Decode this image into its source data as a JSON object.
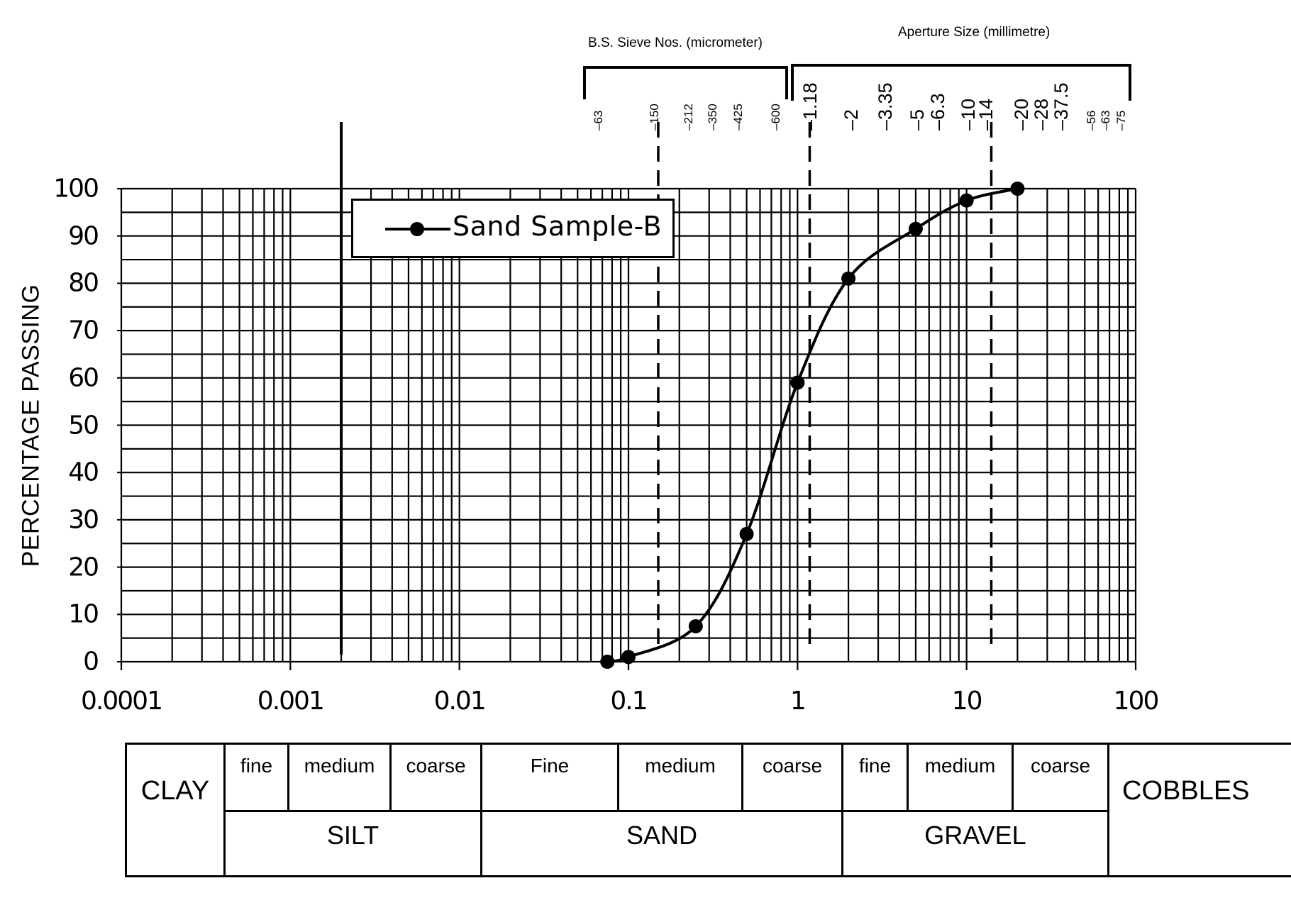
{
  "chart_data": {
    "type": "line",
    "title": "",
    "xlabel": "",
    "ylabel": "PERCENTAGE PASSING",
    "x_scale": "log",
    "xlim": [
      0.0001,
      100
    ],
    "ylim": [
      0,
      100
    ],
    "x_ticks": [
      "0.0001",
      "0.001",
      "0.01",
      "0.1",
      "1",
      "10",
      "100"
    ],
    "y_ticks": [
      "0",
      "10",
      "20",
      "30",
      "40",
      "50",
      "60",
      "70",
      "80",
      "90",
      "100"
    ],
    "grid": true,
    "legend_position": "upper-left",
    "series": [
      {
        "name": "Sand Sample-B",
        "marker": "filled-circle",
        "x": [
          0.075,
          0.1,
          0.25,
          0.5,
          1,
          2,
          5,
          10,
          20
        ],
        "y": [
          0,
          1,
          7.5,
          27,
          59,
          81,
          91.5,
          97.5,
          100
        ]
      }
    ],
    "annotations": {
      "sieve_title": "B.S. Sieve Nos. (micrometer)",
      "aperture_title": "Aperture Size (millimetre)",
      "sieve_ticks_um": [
        "63",
        "150",
        "212",
        "350",
        "425",
        "600"
      ],
      "aperture_ticks_mm": [
        "1.18",
        "2",
        "3.35",
        "5",
        "6.3",
        "10",
        "14",
        "20",
        "28",
        "37.5",
        "56",
        "63",
        "75"
      ],
      "dashed_lines_mm": [
        0.15,
        1.18,
        14
      ],
      "clay_silt_boundary_mm": 0.002
    },
    "classification": {
      "clay": "CLAY",
      "silt": {
        "label": "SILT",
        "subdivisions": [
          "fine",
          "medium",
          "coarse"
        ]
      },
      "sand": {
        "label": "SAND",
        "subdivisions": [
          "Fine",
          "medium",
          "coarse"
        ]
      },
      "gravel": {
        "label": "GRAVEL",
        "subdivisions": [
          "fine",
          "medium",
          "coarse"
        ]
      },
      "cobbles": "COBBLES"
    }
  },
  "labels": {
    "ylabel": "PERCENTAGE PASSING",
    "sieve_title": "B.S. Sieve Nos. (micrometer)",
    "aperture_title": "Aperture Size (millimetre)",
    "legend": "Sand Sample-B",
    "yticks": [
      "100",
      "90",
      "80",
      "70",
      "60",
      "50",
      "40",
      "30",
      "20",
      "10",
      "0"
    ],
    "xticks": [
      "0.0001",
      "0.001",
      "0.01",
      "0.1",
      "1",
      "10",
      "100"
    ],
    "sieve_ticks": [
      "63",
      "150",
      "212",
      "350",
      "425",
      "600"
    ],
    "aperture_ticks": [
      "1.18",
      "2",
      "3.35",
      "5",
      "6.3",
      "10",
      "14",
      "20",
      "28",
      "37.5",
      "56",
      "63",
      "75"
    ]
  },
  "table": {
    "clay": "CLAY",
    "silt_fine": "fine",
    "silt_medium": "medium",
    "silt_coarse": "coarse",
    "sand_fine": "Fine",
    "sand_medium": "medium",
    "sand_coarse": "coarse",
    "gravel_fine": "fine",
    "gravel_medium": "medium",
    "gravel_coarse": "coarse",
    "silt": "SILT",
    "sand": "SAND",
    "gravel": "GRAVEL",
    "cobbles": "COBBLES"
  }
}
